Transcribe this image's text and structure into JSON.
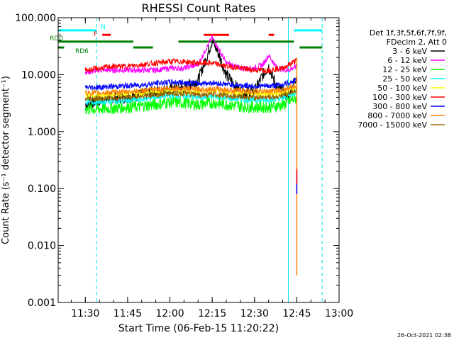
{
  "chart_data": {
    "type": "line",
    "title": "RHESSI Count Rates",
    "xlabel": "Start Time (06-Feb-15 11:20:22)",
    "ylabel": "Count Rate (s⁻¹ detector segment⁻¹)",
    "yscale": "log",
    "ylim": [
      0.001,
      100
    ],
    "xlim": [
      "11:20:22",
      "13:00"
    ],
    "x_ticks": [
      "11:30",
      "11:45",
      "12:00",
      "12:15",
      "12:30",
      "12:45",
      "13:00"
    ],
    "y_ticks": [
      "0.001",
      "0.010",
      "0.100",
      "1.000",
      "10.000",
      "100.000"
    ],
    "legend_header": [
      "Det 1f,3f,5f,6f,7f,9f,",
      "FDecim 2, Att 0"
    ],
    "series": [
      {
        "name": "3 - 6 keV",
        "color": "#000000",
        "x": [
          "11:30",
          "11:35",
          "11:40",
          "11:45",
          "11:50",
          "11:55",
          "12:00",
          "12:05",
          "12:10",
          "12:13",
          "12:15",
          "12:17",
          "12:20",
          "12:25",
          "12:30",
          "12:33",
          "12:35",
          "12:38",
          "12:42",
          "12:45"
        ],
        "y": [
          3,
          3.5,
          4,
          4,
          4.5,
          5,
          5.5,
          6,
          8,
          20,
          40,
          25,
          10,
          5,
          5,
          10,
          14,
          6,
          4,
          10
        ]
      },
      {
        "name": "6 - 12 keV",
        "color": "#ff00ff",
        "x": [
          "11:30",
          "11:35",
          "11:40",
          "11:45",
          "11:50",
          "11:55",
          "12:00",
          "12:05",
          "12:10",
          "12:13",
          "12:15",
          "12:17",
          "12:20",
          "12:25",
          "12:30",
          "12:33",
          "12:35",
          "12:38",
          "12:42",
          "12:45"
        ],
        "y": [
          11,
          12,
          12,
          12,
          12,
          12,
          13,
          13,
          15,
          30,
          45,
          30,
          16,
          13,
          13,
          15,
          22,
          13,
          12,
          14
        ]
      },
      {
        "name": "12 - 25 keV",
        "color": "#00ff00",
        "x": [
          "11:30",
          "11:35",
          "11:40",
          "11:45",
          "11:50",
          "11:55",
          "12:00",
          "12:05",
          "12:10",
          "12:15",
          "12:20",
          "12:25",
          "12:30",
          "12:35",
          "12:40",
          "12:45"
        ],
        "y": [
          2.5,
          2.5,
          2.6,
          2.7,
          2.8,
          3,
          3.3,
          3.2,
          3,
          3.2,
          3,
          2.8,
          2.7,
          2.7,
          2.9,
          4
        ]
      },
      {
        "name": "25 - 50 keV",
        "color": "#00ffff",
        "x": [
          "11:30",
          "11:35",
          "11:40",
          "11:45",
          "11:50",
          "11:55",
          "12:00",
          "12:05",
          "12:10",
          "12:15",
          "12:20",
          "12:25",
          "12:30",
          "12:35",
          "12:40",
          "12:45"
        ],
        "y": [
          3.3,
          3.3,
          3.4,
          3.5,
          3.7,
          4,
          4.3,
          4.2,
          4,
          4.1,
          3.9,
          3.7,
          3.6,
          3.6,
          3.8,
          5
        ]
      },
      {
        "name": "50 - 100 keV",
        "color": "#ffff00",
        "x": [
          "11:30",
          "11:35",
          "11:40",
          "11:45",
          "11:50",
          "11:55",
          "12:00",
          "12:05",
          "12:10",
          "12:15",
          "12:20",
          "12:25",
          "12:30",
          "12:35",
          "12:40",
          "12:45"
        ],
        "y": [
          4.3,
          4.3,
          4.4,
          4.5,
          4.7,
          5,
          5.3,
          5.2,
          5,
          5.1,
          4.9,
          4.7,
          4.6,
          4.6,
          4.8,
          6
        ]
      },
      {
        "name": "100 - 300 keV",
        "color": "#ff0000",
        "x": [
          "11:30",
          "11:35",
          "11:40",
          "11:45",
          "11:50",
          "11:55",
          "12:00",
          "12:05",
          "12:10",
          "12:15",
          "12:20",
          "12:25",
          "12:30",
          "12:35",
          "12:40",
          "12:45"
        ],
        "y": [
          12,
          13,
          14,
          14,
          15,
          16,
          17,
          17,
          16,
          16,
          14,
          13,
          12,
          12,
          13,
          18
        ]
      },
      {
        "name": "300 - 800 keV",
        "color": "#0000ff",
        "x": [
          "11:30",
          "11:35",
          "11:40",
          "11:45",
          "11:50",
          "11:55",
          "12:00",
          "12:05",
          "12:10",
          "12:15",
          "12:20",
          "12:25",
          "12:30",
          "12:35",
          "12:40",
          "12:45"
        ],
        "y": [
          6,
          6,
          6.2,
          6.4,
          6.6,
          7,
          7.4,
          7.3,
          7,
          7.2,
          6.8,
          6.5,
          6.3,
          6.3,
          6.7,
          8
        ]
      },
      {
        "name": "800 - 7000 keV",
        "color": "#ff8000",
        "x": [
          "11:30",
          "11:35",
          "11:40",
          "11:45",
          "11:50",
          "11:55",
          "12:00",
          "12:05",
          "12:10",
          "12:15",
          "12:20",
          "12:25",
          "12:30",
          "12:35",
          "12:40",
          "12:45"
        ],
        "y": [
          4.8,
          4.8,
          4.9,
          5,
          5.2,
          5.5,
          5.8,
          5.7,
          5.5,
          5.6,
          5.4,
          5.2,
          5.1,
          5.1,
          5.3,
          6.5
        ]
      },
      {
        "name": "7000 - 15000 keV",
        "color": "#996600",
        "x": [
          "11:30",
          "11:35",
          "11:40",
          "11:45",
          "11:50",
          "11:55",
          "12:00",
          "12:05",
          "12:10",
          "12:15",
          "12:20",
          "12:25",
          "12:30",
          "12:35",
          "12:40",
          "12:45"
        ],
        "y": [
          3.8,
          3.8,
          3.9,
          4,
          4.2,
          4.4,
          4.7,
          4.6,
          4.4,
          4.5,
          4.3,
          4.1,
          4,
          4,
          4.2,
          5.5
        ]
      }
    ],
    "spikes": [
      {
        "color": "#ff8000",
        "x": "12:45",
        "y_range": [
          0.003,
          20
        ]
      },
      {
        "color": "#0000ff",
        "x": "12:45",
        "y_range": [
          0.08,
          0.2
        ]
      },
      {
        "color": "#ff0000",
        "x": "12:45",
        "y_range": [
          0.12,
          0.22
        ]
      }
    ],
    "annotations": {
      "flags": [
        {
          "label": "RD0",
          "color": "#008000",
          "segments": [
            [
              "11:20:22",
              "11:47"
            ],
            [
              "12:03",
              "12:44"
            ]
          ],
          "y": 38
        },
        {
          "label": "RD6",
          "color": "#008000",
          "segments": [
            [
              "11:20:22",
              "11:22:30"
            ],
            [
              "11:47",
              "11:54"
            ],
            [
              "12:46",
              "12:54"
            ]
          ],
          "y": 30
        },
        {
          "label": "N",
          "color": "#00ffff",
          "segments": [
            [
              "11:20:22",
              "11:34"
            ],
            [
              "12:44",
              "12:54"
            ]
          ],
          "y": 60
        },
        {
          "label": "F",
          "color": "#ff0000",
          "segments": [
            [
              "11:36",
              "11:39"
            ],
            [
              "12:12",
              "12:21"
            ],
            [
              "12:35",
              "12:37"
            ]
          ],
          "y": 50
        }
      ],
      "vlines_dashed": [
        "11:34",
        "12:54"
      ],
      "vlines_solid": [
        "11:20:22",
        "12:42"
      ]
    },
    "timestamp": "26-Oct-2021 02:38"
  }
}
